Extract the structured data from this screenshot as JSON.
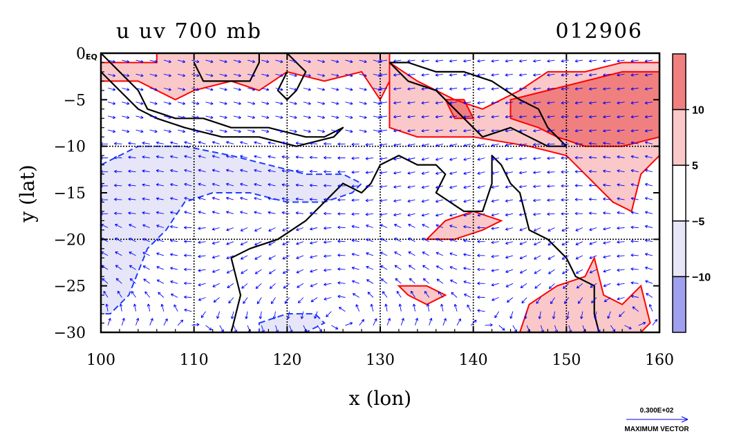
{
  "chart_data": {
    "type": "heatmap",
    "title": "u uv 700 mb",
    "date_label": "012906",
    "xlabel": "x (lon)",
    "ylabel": "y (lat)",
    "xlim": [
      100,
      160
    ],
    "ylim": [
      -30,
      0
    ],
    "x_ticks": [
      100,
      110,
      120,
      130,
      140,
      150,
      160
    ],
    "y_ticks": [
      {
        "value": 0,
        "label": "0"
      },
      {
        "value": -5,
        "label": "−5"
      },
      {
        "value": -10,
        "label": "−10"
      },
      {
        "value": -15,
        "label": "−15"
      },
      {
        "value": -20,
        "label": "−20"
      },
      {
        "value": -25,
        "label": "−25"
      },
      {
        "value": -30,
        "label": "−30"
      }
    ],
    "equator_label": "EQ",
    "grid": true,
    "colorbar": {
      "position": "right",
      "levels": [
        {
          "label": "10",
          "value": 10
        },
        {
          "label": "5",
          "value": 5
        },
        {
          "label": "−5",
          "value": -5
        },
        {
          "label": "−10",
          "value": -10
        }
      ],
      "colors": [
        "#f08080",
        "#fac8c8",
        "#ffffff",
        "#e6e6f8",
        "#a0a0f0"
      ]
    },
    "positive_regions": [
      {
        "level": 5,
        "polygon": [
          [
            100,
            -3
          ],
          [
            104,
            -3
          ],
          [
            108,
            -5
          ],
          [
            110,
            -4
          ],
          [
            114,
            -3
          ],
          [
            117,
            -4
          ],
          [
            120,
            -2
          ],
          [
            124,
            -3
          ],
          [
            128,
            -2
          ],
          [
            130,
            -5
          ],
          [
            131,
            -3
          ],
          [
            131,
            0
          ],
          [
            106,
            0
          ],
          [
            106,
            -1
          ],
          [
            102,
            -1
          ],
          [
            100,
            -1
          ]
        ]
      },
      {
        "level": 5,
        "polygon": [
          [
            131,
            -1
          ],
          [
            134,
            -3
          ],
          [
            138,
            -5
          ],
          [
            141,
            -6
          ],
          [
            145,
            -4
          ],
          [
            148,
            -2
          ],
          [
            152,
            -2
          ],
          [
            156,
            -1
          ],
          [
            160,
            -1
          ],
          [
            160,
            -11
          ],
          [
            158,
            -13
          ],
          [
            157,
            -17
          ],
          [
            155,
            -16
          ],
          [
            153,
            -14
          ],
          [
            150,
            -11
          ],
          [
            146,
            -10
          ],
          [
            140,
            -9
          ],
          [
            134,
            -9
          ],
          [
            131,
            -8
          ],
          [
            131,
            -5
          ]
        ]
      },
      {
        "level": 10,
        "polygon": [
          [
            144,
            -5
          ],
          [
            148,
            -4
          ],
          [
            152,
            -3
          ],
          [
            156,
            -2
          ],
          [
            160,
            -2
          ],
          [
            160,
            -9
          ],
          [
            156,
            -10
          ],
          [
            152,
            -10
          ],
          [
            149,
            -9
          ],
          [
            147,
            -8
          ],
          [
            144,
            -7
          ]
        ]
      },
      {
        "level": 10,
        "polygon": [
          [
            137,
            -5
          ],
          [
            139,
            -5
          ],
          [
            140,
            -7
          ],
          [
            138,
            -7
          ]
        ]
      },
      {
        "level": 5,
        "polygon": [
          [
            135,
            -20
          ],
          [
            137,
            -18
          ],
          [
            140,
            -17
          ],
          [
            143,
            -18
          ],
          [
            141,
            -19
          ],
          [
            138,
            -20
          ]
        ]
      },
      {
        "level": 5,
        "polygon": [
          [
            145,
            -30
          ],
          [
            146,
            -27
          ],
          [
            149,
            -25
          ],
          [
            152,
            -24
          ],
          [
            153,
            -22
          ],
          [
            154,
            -26
          ],
          [
            156,
            -27
          ],
          [
            158,
            -25
          ],
          [
            159,
            -29
          ],
          [
            158,
            -30
          ]
        ]
      },
      {
        "level": 5,
        "polygon": [
          [
            132,
            -25
          ],
          [
            135,
            -25
          ],
          [
            137,
            -26
          ],
          [
            135,
            -27
          ],
          [
            133,
            -26
          ]
        ]
      }
    ],
    "negative_regions": [
      {
        "level": -5,
        "polygon": [
          [
            100,
            -12
          ],
          [
            104,
            -10
          ],
          [
            109,
            -10
          ],
          [
            114,
            -11
          ],
          [
            118,
            -12
          ],
          [
            122,
            -13
          ],
          [
            126,
            -13
          ],
          [
            128,
            -14
          ],
          [
            127,
            -15
          ],
          [
            124,
            -16
          ],
          [
            120,
            -16
          ],
          [
            116,
            -15
          ],
          [
            112,
            -15
          ],
          [
            109,
            -16
          ],
          [
            107,
            -19
          ],
          [
            105,
            -21
          ],
          [
            103,
            -26
          ],
          [
            101,
            -28
          ],
          [
            100,
            -28
          ]
        ]
      },
      {
        "level": -5,
        "polygon": [
          [
            117,
            -29
          ],
          [
            120,
            -28
          ],
          [
            123,
            -28
          ],
          [
            124,
            -29
          ],
          [
            122,
            -30
          ],
          [
            117,
            -30
          ]
        ]
      }
    ],
    "coastlines": [
      {
        "name": "sumatra-java",
        "points": [
          [
            100,
            0
          ],
          [
            102,
            -2
          ],
          [
            104,
            -4
          ],
          [
            105,
            -6
          ],
          [
            108,
            -7
          ],
          [
            111,
            -7
          ],
          [
            114,
            -8
          ],
          [
            116,
            -8
          ],
          [
            118,
            -8
          ],
          [
            122,
            -9
          ],
          [
            124,
            -9
          ],
          [
            126,
            -8
          ],
          [
            125,
            -9
          ],
          [
            121,
            -10
          ],
          [
            117,
            -9
          ],
          [
            113,
            -9
          ],
          [
            109,
            -8
          ],
          [
            106,
            -7
          ],
          [
            104,
            -6
          ],
          [
            102,
            -4
          ],
          [
            100,
            -2
          ]
        ]
      },
      {
        "name": "borneo",
        "points": [
          [
            110,
            -1
          ],
          [
            111,
            -3
          ],
          [
            114,
            -3
          ],
          [
            116,
            -3
          ],
          [
            117,
            -1
          ],
          [
            117,
            0
          ]
        ]
      },
      {
        "name": "sulawesi",
        "points": [
          [
            120,
            0
          ],
          [
            121,
            -1
          ],
          [
            122,
            -2
          ],
          [
            121,
            -4
          ],
          [
            120,
            -5
          ],
          [
            119,
            -4
          ],
          [
            120,
            -2
          ]
        ]
      },
      {
        "name": "new-guinea",
        "points": [
          [
            131,
            -1
          ],
          [
            133,
            -3
          ],
          [
            136,
            -4
          ],
          [
            138,
            -6
          ],
          [
            141,
            -9
          ],
          [
            144,
            -8
          ],
          [
            146,
            -9
          ],
          [
            148,
            -10
          ],
          [
            150,
            -10
          ],
          [
            148,
            -8
          ],
          [
            147,
            -6
          ],
          [
            145,
            -5
          ],
          [
            142,
            -3
          ],
          [
            139,
            -2
          ],
          [
            136,
            -2
          ],
          [
            133,
            -1
          ],
          [
            131,
            -1
          ]
        ]
      },
      {
        "name": "australia",
        "points": [
          [
            114,
            -30
          ],
          [
            115,
            -26
          ],
          [
            114,
            -22
          ],
          [
            116,
            -21
          ],
          [
            119,
            -20
          ],
          [
            122,
            -18
          ],
          [
            124,
            -16
          ],
          [
            126,
            -14
          ],
          [
            128,
            -15
          ],
          [
            129,
            -14
          ],
          [
            130,
            -12
          ],
          [
            132,
            -11
          ],
          [
            134,
            -12
          ],
          [
            136,
            -12
          ],
          [
            137,
            -13
          ],
          [
            136,
            -15
          ],
          [
            139,
            -17
          ],
          [
            141,
            -17
          ],
          [
            142,
            -14
          ],
          [
            142,
            -11
          ],
          [
            143,
            -12
          ],
          [
            144,
            -14
          ],
          [
            145,
            -15
          ],
          [
            146,
            -19
          ],
          [
            148,
            -20
          ],
          [
            150,
            -22
          ],
          [
            151,
            -24
          ],
          [
            153,
            -25
          ],
          [
            153,
            -28
          ],
          [
            153.5,
            -30
          ]
        ]
      }
    ],
    "vectors": {
      "grid_step_deg": 1.5,
      "units": "m/s",
      "max_vector_label": "0.300E+02",
      "max_vector_caption": "MAXIMUM VECTOR"
    }
  }
}
